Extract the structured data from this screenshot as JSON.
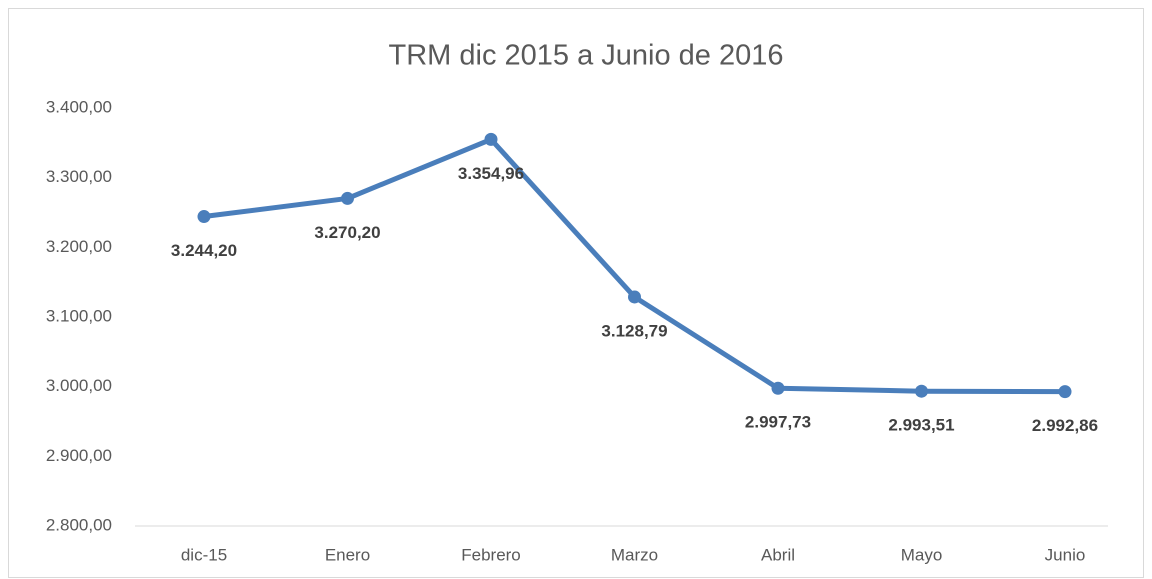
{
  "chart_data": {
    "type": "line",
    "title": "TRM dic 2015 a Junio de 2016",
    "categories": [
      "dic-15",
      "Enero",
      "Febrero",
      "Marzo",
      "Abril",
      "Mayo",
      "Junio"
    ],
    "values": [
      3244.2,
      3270.2,
      3354.96,
      3128.79,
      2997.73,
      2993.51,
      2992.86
    ],
    "value_labels": [
      "3.244,20",
      "3.270,20",
      "3.354,96",
      "3.128,79",
      "2.997,73",
      "2.993,51",
      "2.992,86"
    ],
    "color": "#4a7ebb",
    "ylim": [
      2800,
      3400
    ],
    "yticks": [
      {
        "value": 2800,
        "label": "2.800,00"
      },
      {
        "value": 2900,
        "label": "2.900,00"
      },
      {
        "value": 3000,
        "label": "3.000,00"
      },
      {
        "value": 3100,
        "label": "3.100,00"
      },
      {
        "value": 3200,
        "label": "3.200,00"
      },
      {
        "value": 3300,
        "label": "3.300,00"
      },
      {
        "value": 3400,
        "label": "3.400,00"
      }
    ],
    "grid": false
  }
}
